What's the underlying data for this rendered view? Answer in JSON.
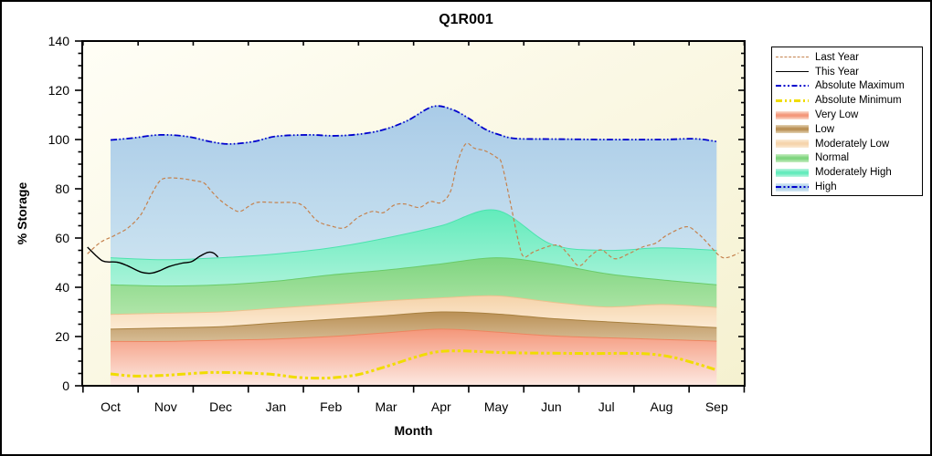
{
  "title": "Q1R001",
  "axes": {
    "x_label": "Month",
    "y_label": "% Storage",
    "months": [
      "Oct",
      "Nov",
      "Dec",
      "Jan",
      "Feb",
      "Mar",
      "Apr",
      "May",
      "Jun",
      "Jul",
      "Aug",
      "Sep"
    ],
    "y_ticks": [
      0,
      20,
      40,
      60,
      80,
      100,
      120,
      140
    ],
    "y_minor_step": 5,
    "y_max": 140
  },
  "colors": {
    "axis": "#000000",
    "plot_bg_top_left": "#FFFEF6",
    "plot_bg_bottom_right": "#F5F1D0"
  },
  "legend": {
    "items": [
      {
        "label": "Last Year",
        "kind": "dash",
        "color": "#C5824E"
      },
      {
        "label": "This Year",
        "kind": "solid",
        "color": "#000000"
      },
      {
        "label": "Absolute Maximum",
        "kind": "dashdot",
        "color": "#0000CD"
      },
      {
        "label": "Absolute Minimum",
        "kind": "dashdot_thick",
        "color": "#F0DC00"
      },
      {
        "label": "Very Low",
        "kind": "band",
        "color": "#F4977A",
        "light": "#FBDCCE"
      },
      {
        "label": "Low",
        "kind": "band",
        "color": "#BA9055",
        "light": "#E3D3B4"
      },
      {
        "label": "Moderately Low",
        "kind": "band",
        "color": "#F6D4AC",
        "light": "#FBEBD6"
      },
      {
        "label": "Normal",
        "kind": "band",
        "color": "#7FD57F",
        "light": "#C8EDC2"
      },
      {
        "label": "Moderately High",
        "kind": "band",
        "color": "#63EBBC",
        "light": "#BCF5E0"
      },
      {
        "label": "High",
        "kind": "band_line",
        "color": "#A9CBE7",
        "light": "#D6E9F4",
        "line_color": "#0000CD"
      }
    ]
  },
  "chart_data": {
    "type": "area",
    "title": "Q1R001",
    "xlabel": "Month",
    "ylabel": "% Storage",
    "ylim": [
      0,
      140
    ],
    "categories": [
      "Oct",
      "Nov",
      "Dec",
      "Jan",
      "Feb",
      "Mar",
      "Apr",
      "May",
      "Jun",
      "Jul",
      "Aug",
      "Sep"
    ],
    "bands": [
      {
        "name": "Very Low",
        "top_values": [
          18,
          18,
          18.5,
          19,
          20,
          21.5,
          23,
          21.8,
          20.3,
          19.5,
          18.8,
          18.1
        ],
        "top_color": "#F4977A",
        "bottom_color": "#FDE9E2",
        "edge": "#EE8560"
      },
      {
        "name": "Low",
        "top_values": [
          23,
          23.5,
          24,
          25.5,
          27,
          28.5,
          30,
          29.2,
          27.3,
          26,
          24.8,
          23.6
        ],
        "top_color": "#BA9055",
        "bottom_color": "#D6BC95",
        "edge": "#A8803F"
      },
      {
        "name": "Moderately Low",
        "top_values": [
          29,
          29.5,
          30,
          31.5,
          33,
          34.5,
          35.7,
          36.5,
          34,
          32,
          33,
          31.8
        ],
        "top_color": "#F5D3AA",
        "bottom_color": "#FCEBD4",
        "edge": "#ECC28E"
      },
      {
        "name": "Normal",
        "top_values": [
          41,
          40.5,
          41,
          42.5,
          45,
          47,
          49.5,
          52,
          49.5,
          45.5,
          43,
          41
        ],
        "top_color": "#80D580",
        "bottom_color": "#AFE5A8",
        "edge": "#69CB69"
      },
      {
        "name": "Moderately High",
        "top_values": [
          52,
          51.2,
          52,
          53.5,
          56,
          60,
          65,
          71.3,
          57.5,
          55,
          56,
          55
        ],
        "top_color": "#62EBBB",
        "bottom_color": "#A9F3D9",
        "edge": "#4BE3AE"
      },
      {
        "name": "High",
        "top_follows": "absolute_maximum",
        "top_color": "#A9CBE7",
        "bottom_color": "#CAE2F0",
        "edge": "#9CC2E2"
      }
    ],
    "lines": {
      "absolute_maximum": {
        "name": "Absolute Maximum",
        "color": "#0000CD",
        "width": 1.8,
        "dash": "7 2.5 1.5 2.5 1.5 2.5",
        "points": [
          [
            0,
            99.8
          ],
          [
            0.4,
            100.6
          ],
          [
            0.9,
            101.9
          ],
          [
            1.4,
            101.2
          ],
          [
            1.8,
            99.2
          ],
          [
            2.15,
            98.2
          ],
          [
            2.6,
            99.2
          ],
          [
            3.0,
            101.3
          ],
          [
            3.6,
            101.9
          ],
          [
            4.1,
            101.5
          ],
          [
            4.6,
            102.4
          ],
          [
            5.0,
            104.3
          ],
          [
            5.4,
            107.8
          ],
          [
            5.85,
            113.4
          ],
          [
            6.2,
            112.2
          ],
          [
            6.5,
            108.6
          ],
          [
            6.8,
            104.2
          ],
          [
            7.05,
            102.0
          ],
          [
            7.35,
            100.4
          ],
          [
            8.0,
            100.2
          ],
          [
            9.0,
            100.0
          ],
          [
            10.0,
            100.0
          ],
          [
            10.6,
            100.3
          ],
          [
            11,
            99.2
          ]
        ]
      },
      "absolute_minimum": {
        "name": "Absolute Minimum",
        "color": "#F0DC00",
        "width": 3,
        "dash": "9 3 3.2 3 3.2 3",
        "points": [
          [
            0,
            4.8
          ],
          [
            0.4,
            4.0
          ],
          [
            0.85,
            4.1
          ],
          [
            1.3,
            4.7
          ],
          [
            1.8,
            5.4
          ],
          [
            2.3,
            5.3
          ],
          [
            2.9,
            4.7
          ],
          [
            3.35,
            3.5
          ],
          [
            3.7,
            3.1
          ],
          [
            4.05,
            3.3
          ],
          [
            4.5,
            4.6
          ],
          [
            5.0,
            7.8
          ],
          [
            5.5,
            11.4
          ],
          [
            5.9,
            13.7
          ],
          [
            6.3,
            14.2
          ],
          [
            6.7,
            13.9
          ],
          [
            7.1,
            13.5
          ],
          [
            7.6,
            13.3
          ],
          [
            8.2,
            13.2
          ],
          [
            8.8,
            13.1
          ],
          [
            9.4,
            13.2
          ],
          [
            9.8,
            12.9
          ],
          [
            10.2,
            11.6
          ],
          [
            10.6,
            9.2
          ],
          [
            11,
            6.4
          ]
        ]
      },
      "last_year": {
        "name": "Last Year",
        "color": "#C5824E",
        "width": 1.2,
        "dash": "4 2.6",
        "points": [
          [
            -0.42,
            53.6
          ],
          [
            -0.18,
            58.3
          ],
          [
            0.07,
            61
          ],
          [
            0.32,
            64.2
          ],
          [
            0.55,
            69.5
          ],
          [
            0.75,
            78
          ],
          [
            0.9,
            83.3
          ],
          [
            1.05,
            84.4
          ],
          [
            1.3,
            84.1
          ],
          [
            1.55,
            83.2
          ],
          [
            1.7,
            82.3
          ],
          [
            1.85,
            78.5
          ],
          [
            2.0,
            75.2
          ],
          [
            2.2,
            72
          ],
          [
            2.35,
            70.8
          ],
          [
            2.55,
            73.5
          ],
          [
            2.7,
            74.6
          ],
          [
            3.0,
            74.4
          ],
          [
            3.3,
            74.4
          ],
          [
            3.5,
            73
          ],
          [
            3.75,
            67
          ],
          [
            4.0,
            64.9
          ],
          [
            4.25,
            64.2
          ],
          [
            4.5,
            68.5
          ],
          [
            4.75,
            70.8
          ],
          [
            4.95,
            70.3
          ],
          [
            5.15,
            73.4
          ],
          [
            5.35,
            73.8
          ],
          [
            5.6,
            72.4
          ],
          [
            5.8,
            74.8
          ],
          [
            6.0,
            74.4
          ],
          [
            6.17,
            79
          ],
          [
            6.3,
            91
          ],
          [
            6.45,
            98.3
          ],
          [
            6.6,
            96.5
          ],
          [
            6.8,
            95.4
          ],
          [
            7.0,
            92.8
          ],
          [
            7.1,
            90.2
          ],
          [
            7.25,
            75
          ],
          [
            7.4,
            59
          ],
          [
            7.5,
            52.4
          ],
          [
            7.7,
            54.6
          ],
          [
            8.1,
            57.2
          ],
          [
            8.3,
            53.5
          ],
          [
            8.5,
            48.7
          ],
          [
            8.7,
            52.5
          ],
          [
            8.9,
            55.2
          ],
          [
            9.15,
            51.6
          ],
          [
            9.4,
            53.6
          ],
          [
            9.65,
            56.3
          ],
          [
            9.9,
            58
          ],
          [
            10.1,
            61.2
          ],
          [
            10.45,
            64.6
          ],
          [
            10.65,
            62
          ],
          [
            10.8,
            58.8
          ],
          [
            11.05,
            52.8
          ],
          [
            11.2,
            52.1
          ],
          [
            11.4,
            53.9
          ]
        ]
      },
      "this_year": {
        "name": "This Year",
        "color": "#000000",
        "width": 1.4,
        "dash": "",
        "points": [
          [
            -0.42,
            56.3
          ],
          [
            -0.28,
            53.2
          ],
          [
            -0.16,
            50.9
          ],
          [
            -0.05,
            50.3
          ],
          [
            0.12,
            50.2
          ],
          [
            0.3,
            48.8
          ],
          [
            0.55,
            46.2
          ],
          [
            0.73,
            45.7
          ],
          [
            0.9,
            46.8
          ],
          [
            1.06,
            48.4
          ],
          [
            1.3,
            49.8
          ],
          [
            1.47,
            50.4
          ],
          [
            1.62,
            52.6
          ],
          [
            1.77,
            54.2
          ],
          [
            1.87,
            53.9
          ],
          [
            1.95,
            52.3
          ]
        ]
      }
    }
  }
}
